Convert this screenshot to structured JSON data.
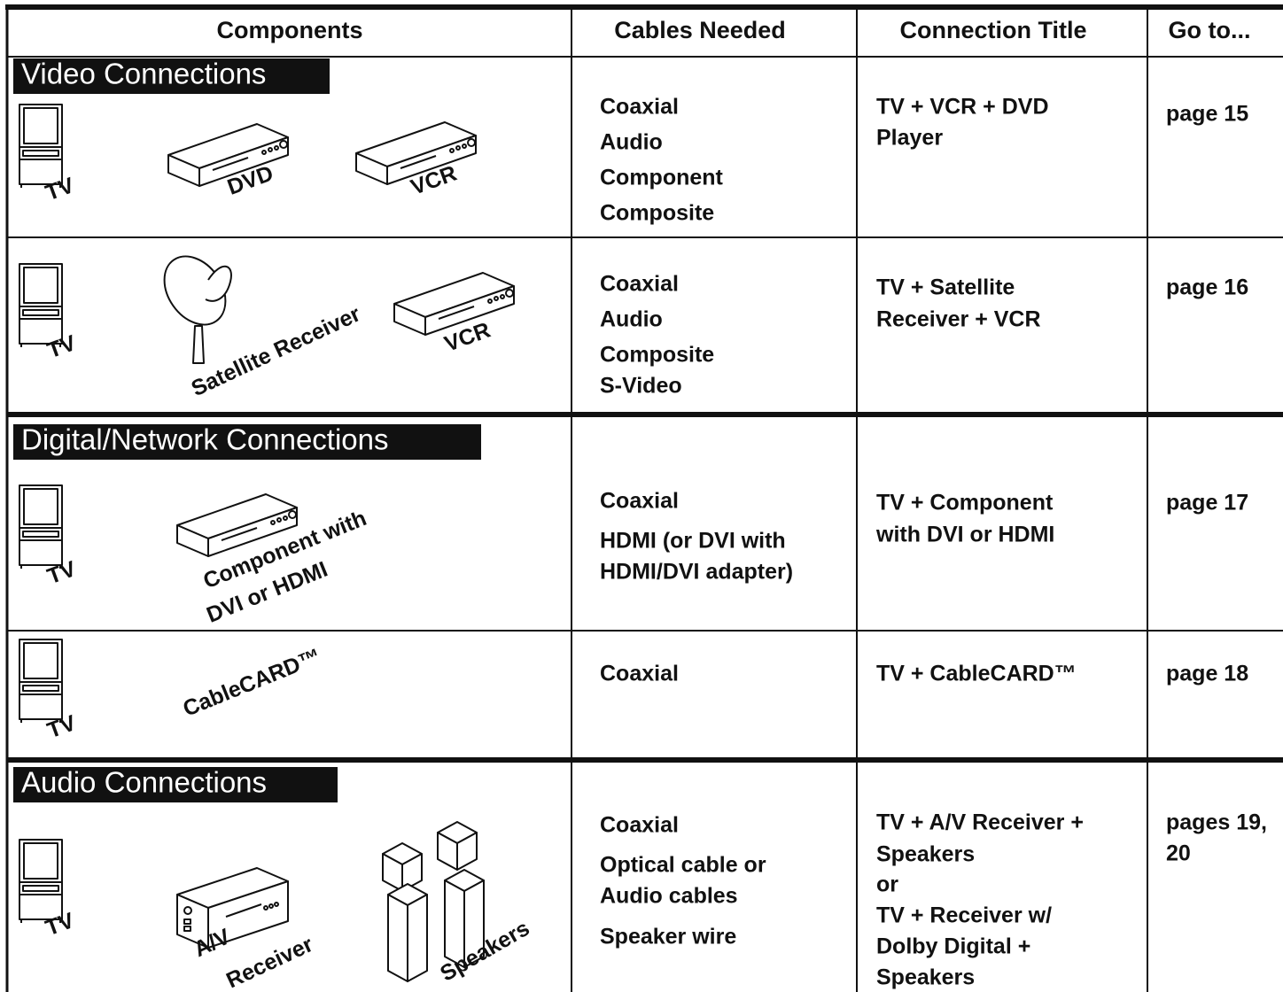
{
  "table": {
    "header": [
      "Components",
      "Cables Needed",
      "Connection Title",
      "Go to..."
    ],
    "sections": [
      {
        "title": "Video Connections",
        "rows": [
          {
            "devices": [
              "TV",
              "DVD",
              "VCR"
            ],
            "cables": [
              "Coaxial",
              "Audio",
              "Component",
              "Composite"
            ],
            "connection": [
              "TV +  VCR + DVD",
              "Player"
            ],
            "goto": [
              "page 15"
            ]
          },
          {
            "devices": [
              "TV",
              "Satellite Receiver",
              "VCR"
            ],
            "cables": [
              "Coaxial",
              "Audio",
              "Composite",
              "S-Video"
            ],
            "connection": [
              "TV + Satellite",
              "Receiver + VCR"
            ],
            "goto": [
              "page 16"
            ]
          }
        ]
      },
      {
        "title": "Digital/Network Connections",
        "rows": [
          {
            "devices": [
              "TV",
              "Component with",
              "DVI or HDMI"
            ],
            "cables": [
              "Coaxial",
              "HDMI (or DVI with",
              "HDMI/DVI adapter)"
            ],
            "connection": [
              "TV + Component",
              "with DVI or HDMI"
            ],
            "goto": [
              "page 17"
            ]
          },
          {
            "devices": [
              "TV",
              "CableCARD™"
            ],
            "cables": [
              "Coaxial"
            ],
            "connection": [
              "TV + CableCARD™"
            ],
            "goto": [
              "page 18"
            ]
          }
        ]
      },
      {
        "title": "Audio Connections",
        "rows": [
          {
            "devices": [
              "TV",
              "A/V",
              "Receiver",
              "Speakers"
            ],
            "cables": [
              "Coaxial",
              "Optical cable or",
              "Audio cables",
              "Speaker wire"
            ],
            "connection": [
              "TV + A/V Receiver +",
              "Speakers",
              "or",
              "TV + Receiver w/",
              "Dolby Digital +",
              "Speakers"
            ],
            "goto": [
              "pages 19,",
              "20"
            ]
          }
        ]
      }
    ]
  }
}
